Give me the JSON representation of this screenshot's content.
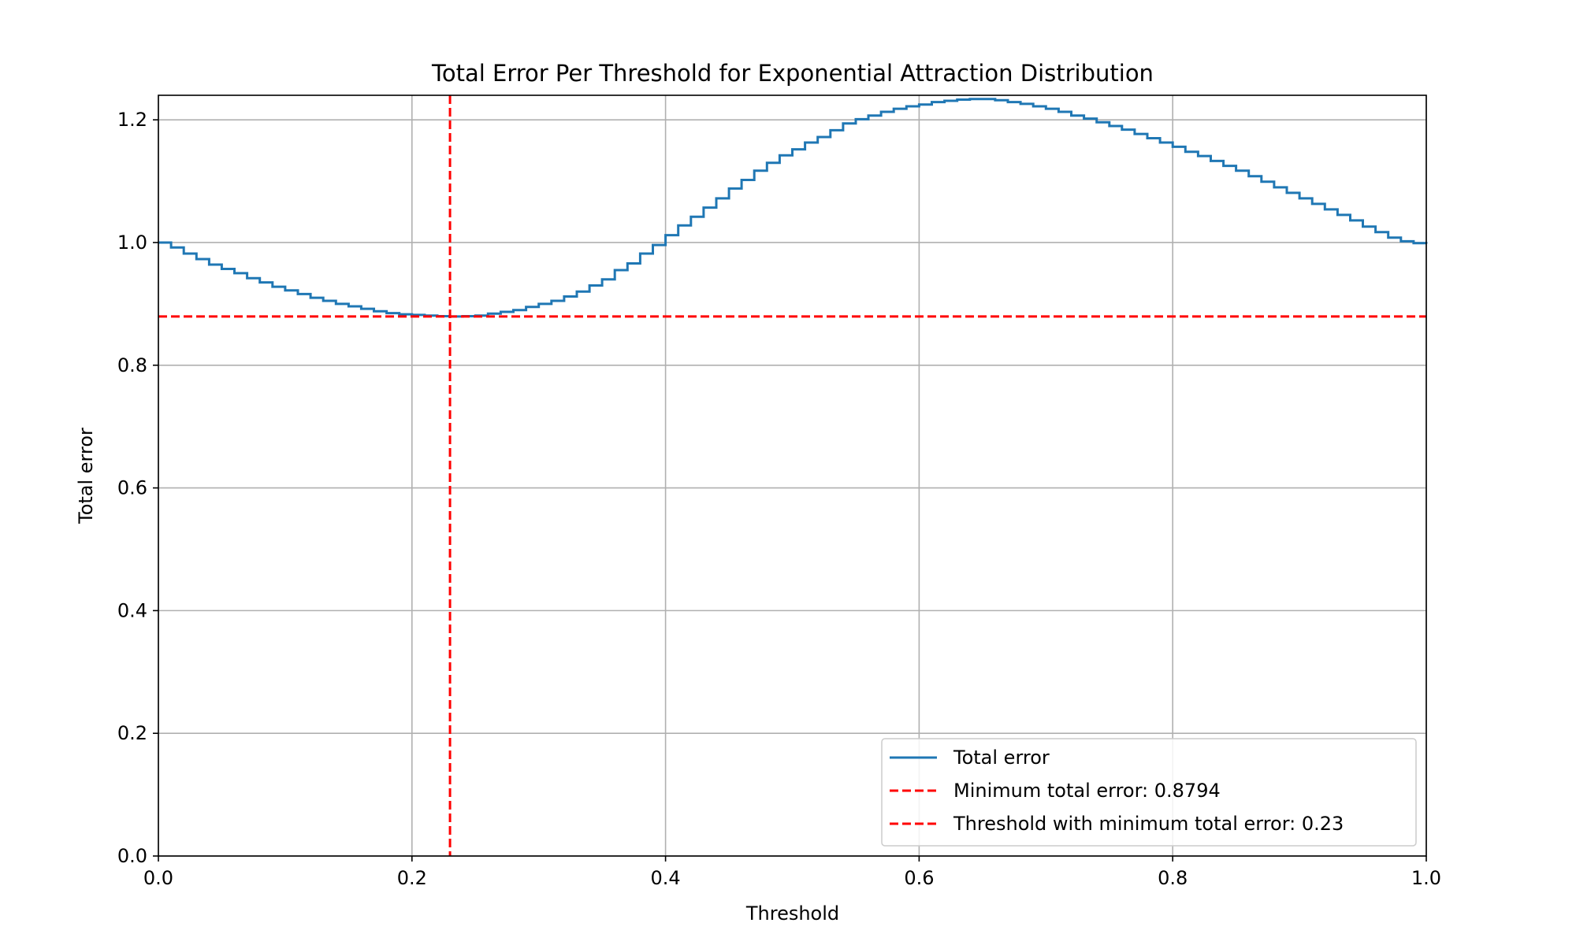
{
  "chart_data": {
    "type": "line",
    "title": "Total Error Per Threshold for Exponential Attraction Distribution",
    "xlabel": "Threshold",
    "ylabel": "Total error",
    "xlim": [
      0.0,
      1.0
    ],
    "ylim": [
      0.0,
      1.24
    ],
    "xticks": [
      "0.0",
      "0.2",
      "0.4",
      "0.6",
      "0.8",
      "1.0"
    ],
    "yticks": [
      "0.0",
      "0.2",
      "0.4",
      "0.6",
      "0.8",
      "1.0",
      "1.2"
    ],
    "grid": true,
    "legend_position": "lower-right",
    "series": [
      {
        "name": "Total error",
        "style": "steps",
        "color": "#1f77b4",
        "x": [
          0.0,
          0.01,
          0.02,
          0.03,
          0.04,
          0.05,
          0.06,
          0.07,
          0.08,
          0.09,
          0.1,
          0.11,
          0.12,
          0.13,
          0.14,
          0.15,
          0.16,
          0.17,
          0.18,
          0.19,
          0.2,
          0.21,
          0.22,
          0.23,
          0.24,
          0.25,
          0.26,
          0.27,
          0.28,
          0.29,
          0.3,
          0.31,
          0.32,
          0.33,
          0.34,
          0.35,
          0.36,
          0.37,
          0.38,
          0.39,
          0.4,
          0.41,
          0.42,
          0.43,
          0.44,
          0.45,
          0.46,
          0.47,
          0.48,
          0.49,
          0.5,
          0.51,
          0.52,
          0.53,
          0.54,
          0.55,
          0.56,
          0.57,
          0.58,
          0.59,
          0.6,
          0.61,
          0.62,
          0.63,
          0.64,
          0.65,
          0.66,
          0.67,
          0.68,
          0.69,
          0.7,
          0.71,
          0.72,
          0.73,
          0.74,
          0.75,
          0.76,
          0.77,
          0.78,
          0.79,
          0.8,
          0.81,
          0.82,
          0.83,
          0.84,
          0.85,
          0.86,
          0.87,
          0.88,
          0.89,
          0.9,
          0.91,
          0.92,
          0.93,
          0.94,
          0.95,
          0.96,
          0.97,
          0.98,
          0.99,
          1.0
        ],
        "y": [
          1.0,
          0.992,
          0.982,
          0.973,
          0.964,
          0.957,
          0.95,
          0.942,
          0.935,
          0.928,
          0.922,
          0.916,
          0.91,
          0.905,
          0.9,
          0.896,
          0.892,
          0.888,
          0.885,
          0.883,
          0.882,
          0.881,
          0.88,
          0.8794,
          0.88,
          0.881,
          0.884,
          0.887,
          0.89,
          0.895,
          0.9,
          0.905,
          0.912,
          0.92,
          0.93,
          0.94,
          0.955,
          0.966,
          0.982,
          0.996,
          1.012,
          1.028,
          1.042,
          1.057,
          1.072,
          1.088,
          1.102,
          1.117,
          1.13,
          1.142,
          1.152,
          1.163,
          1.172,
          1.183,
          1.194,
          1.201,
          1.207,
          1.213,
          1.218,
          1.222,
          1.225,
          1.229,
          1.231,
          1.233,
          1.234,
          1.234,
          1.232,
          1.229,
          1.226,
          1.222,
          1.218,
          1.213,
          1.207,
          1.202,
          1.196,
          1.19,
          1.184,
          1.177,
          1.17,
          1.163,
          1.156,
          1.148,
          1.141,
          1.133,
          1.125,
          1.117,
          1.108,
          1.099,
          1.09,
          1.081,
          1.072,
          1.063,
          1.054,
          1.045,
          1.036,
          1.026,
          1.017,
          1.008,
          1.002,
          0.999,
          0.998
        ]
      },
      {
        "name": "Minimum total error: 0.8794",
        "style": "hline",
        "color": "#ff0000",
        "y": 0.8794
      },
      {
        "name": "Threshold with minimum total error: 0.23",
        "style": "vline",
        "color": "#ff0000",
        "x": 0.23
      }
    ]
  }
}
